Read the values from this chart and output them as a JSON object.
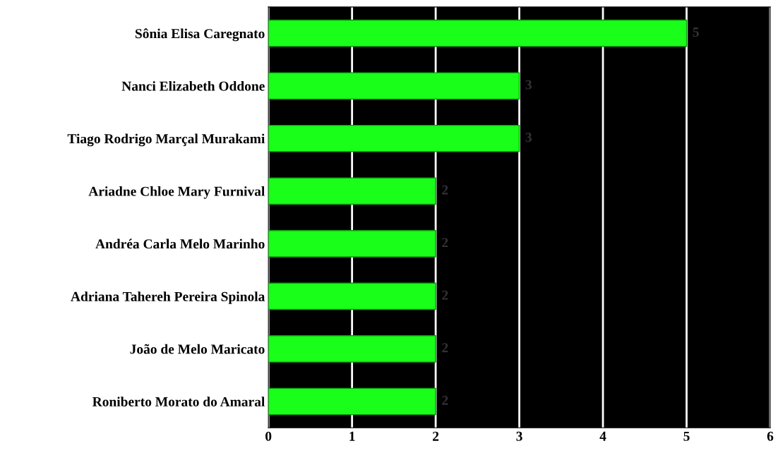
{
  "chart_data": {
    "type": "bar",
    "orientation": "horizontal",
    "categories": [
      "Sônia Elisa Caregnato",
      "Nanci Elizabeth Oddone",
      "Tiago Rodrigo Marçal Murakami",
      "Ariadne Chloe Mary Furnival",
      "Andréa Carla Melo Marinho",
      "Adriana Tahereh Pereira Spinola",
      "João de Melo Maricato",
      "Roniberto Morato do Amaral"
    ],
    "values": [
      5,
      3,
      3,
      2,
      2,
      2,
      2,
      2
    ],
    "color": "#1aff1a",
    "xlim": [
      0,
      6
    ],
    "xticks": [
      0,
      1,
      2,
      3,
      4,
      5,
      6
    ],
    "grid": "x",
    "data_labels": true,
    "legend": false
  }
}
